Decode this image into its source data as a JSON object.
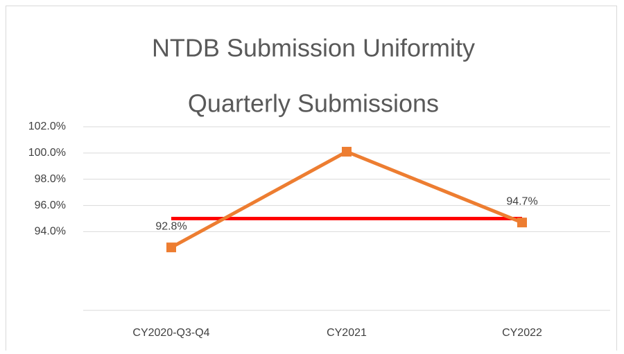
{
  "chart_data": {
    "type": "line",
    "title": "NTDB Submission Uniformity",
    "subtitle": "Quarterly  Submissions",
    "categories": [
      "CY2020-Q3-Q4",
      "CY2021",
      "CY2022"
    ],
    "series": [
      {
        "color": "#ED7D31",
        "values": [
          92.8,
          100.1,
          94.7
        ],
        "value_labels": [
          "92.8%",
          null,
          "94.7%"
        ]
      }
    ],
    "target": {
      "color": "#FF0000",
      "value": 95.0
    },
    "ylim": [
      88,
      102
    ],
    "yticks": [
      {
        "value": 94,
        "label": "94.0%"
      },
      {
        "value": 96,
        "label": "96.0%"
      },
      {
        "value": 98,
        "label": "98.0%"
      },
      {
        "value": 100,
        "label": "100.0%"
      },
      {
        "value": 102,
        "label": "102.0%"
      }
    ],
    "grid": true
  }
}
